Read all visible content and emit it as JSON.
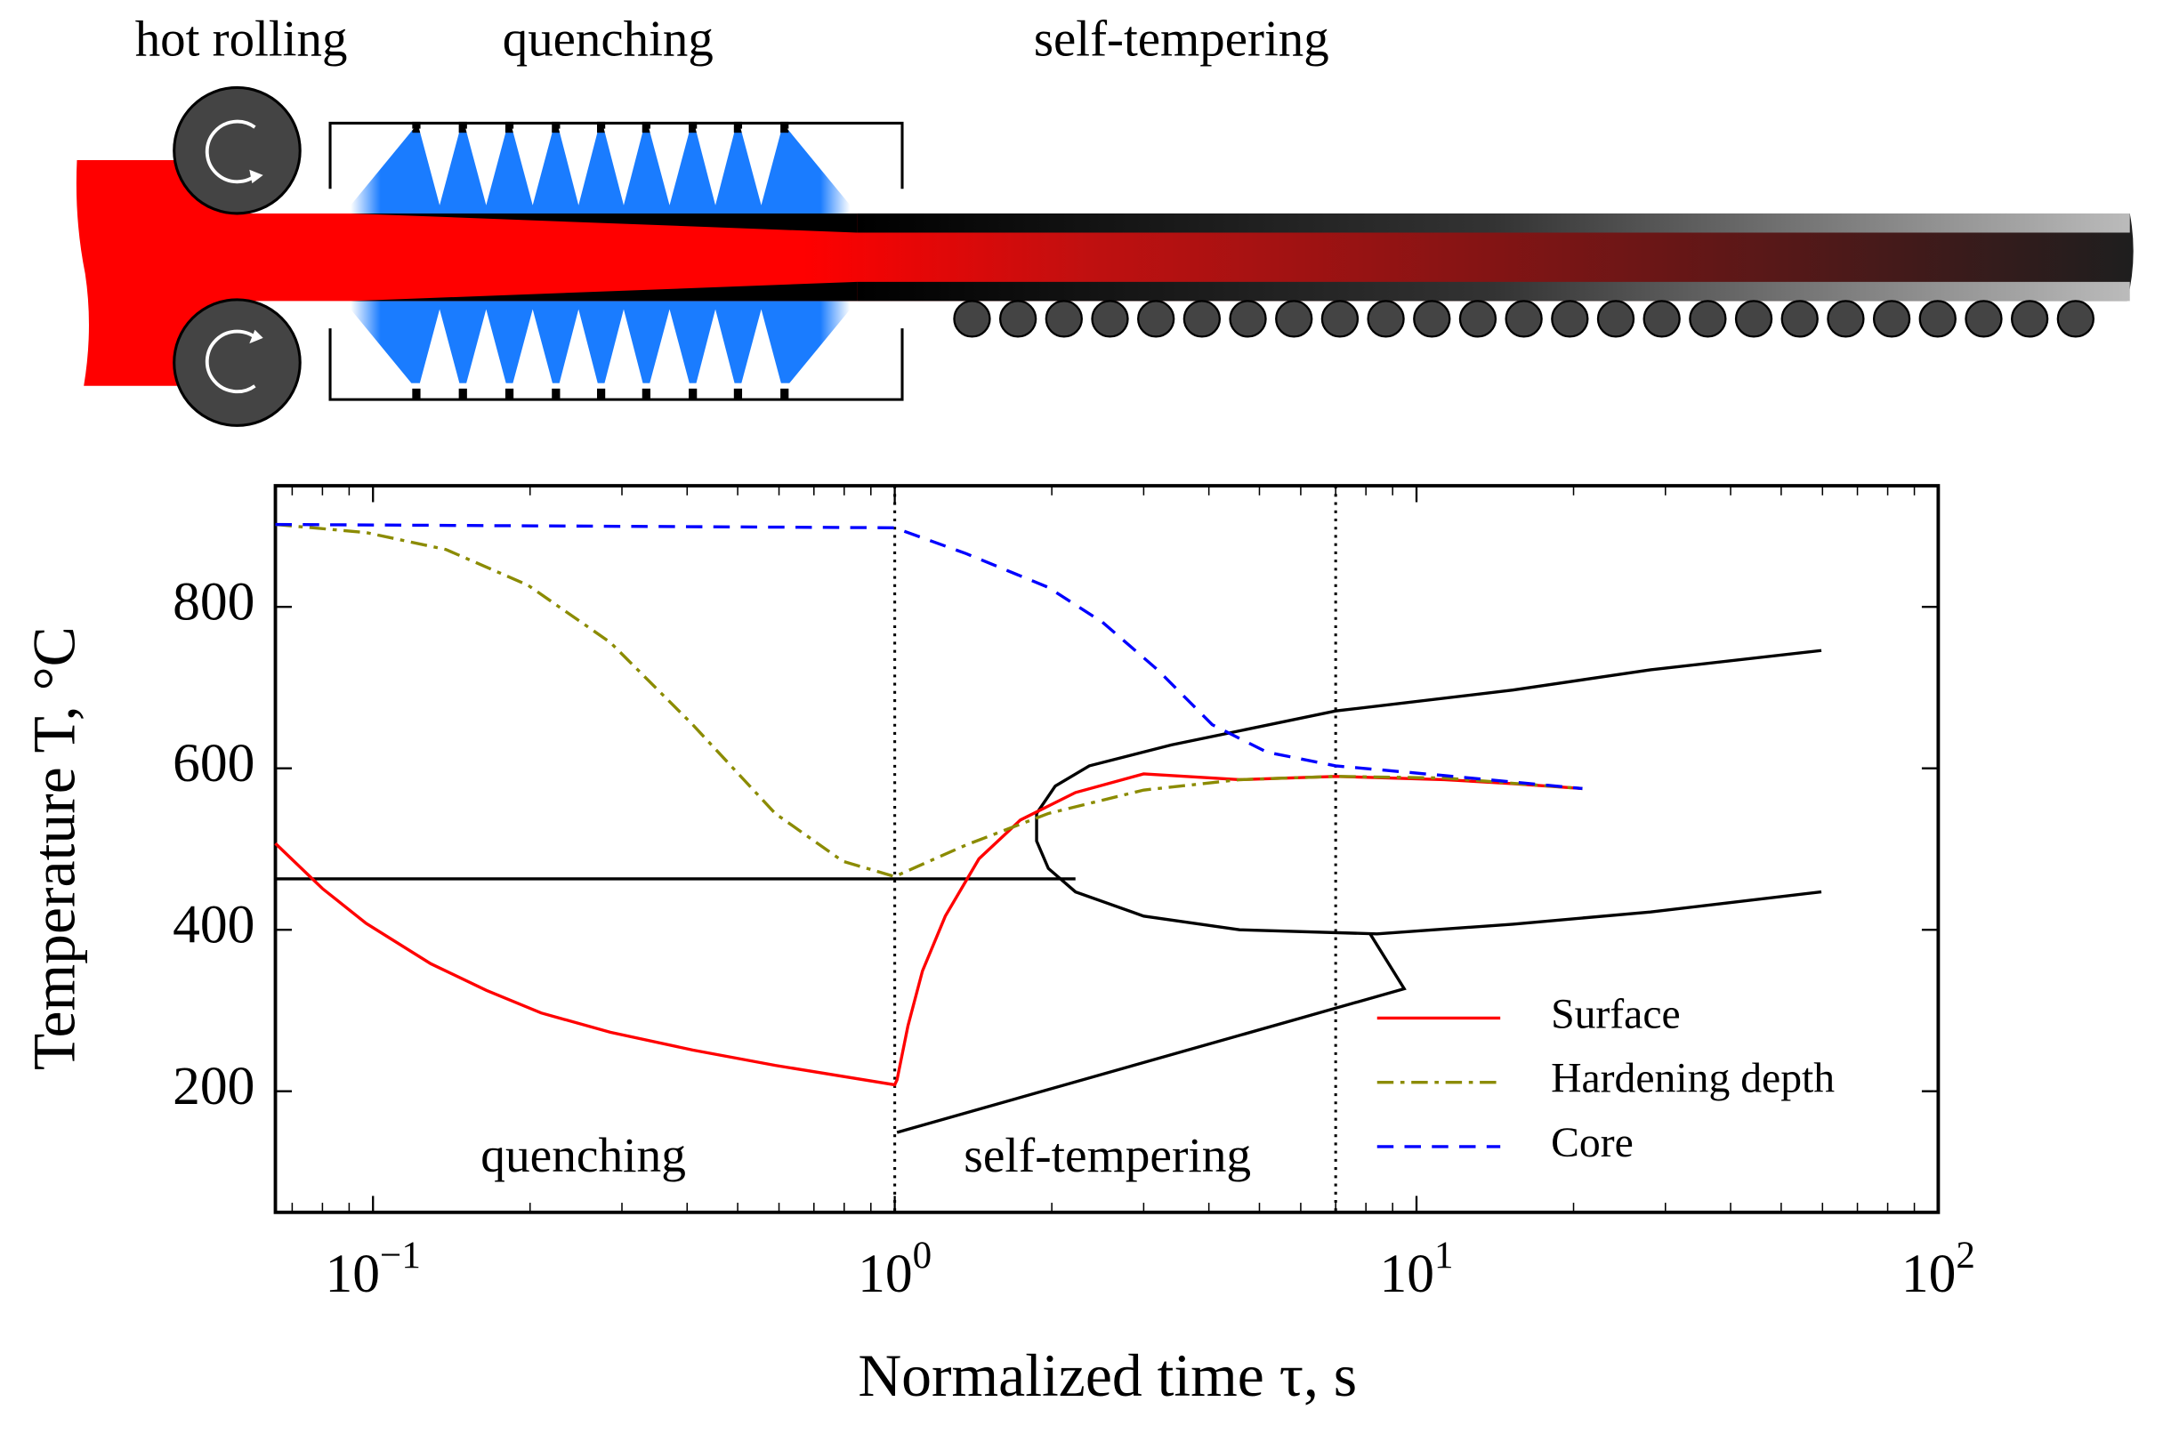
{
  "diagram": {
    "labels": [
      "hot rolling",
      "quenching",
      "self-tempering"
    ]
  },
  "chart_data": {
    "type": "line",
    "xlabel": "Normalized time τ, s",
    "ylabel": "Temperature T, °C",
    "xscale": "log",
    "xlim": [
      0.065,
      100
    ],
    "ylim": [
      50,
      950
    ],
    "xticks": [
      {
        "value": 0.1,
        "label": "10",
        "exponent": "−1"
      },
      {
        "value": 1,
        "label": "10",
        "exponent": "0"
      },
      {
        "value": 10,
        "label": "10",
        "exponent": "1"
      },
      {
        "value": 100,
        "label": "10",
        "exponent": "2"
      }
    ],
    "xminorticks": [
      0.07,
      0.08,
      0.09,
      0.2,
      0.3,
      0.4,
      0.5,
      0.6,
      0.7,
      0.8,
      0.9,
      2,
      3,
      4,
      5,
      6,
      7,
      8,
      9,
      20,
      30,
      40,
      50,
      60,
      70,
      80,
      90
    ],
    "yticks": [
      200,
      400,
      600,
      800
    ],
    "vlines": [
      1,
      7
    ],
    "legend": "lower right",
    "annotations": [
      "quenching",
      "self-tempering"
    ],
    "series": [
      {
        "name": "Surface",
        "color": "#ff0000",
        "style": "solid",
        "x": [
          0.065,
          0.08,
          0.097,
          0.129,
          0.165,
          0.21,
          0.285,
          0.41,
          0.59,
          1.0,
          1.01,
          1.06,
          1.13,
          1.25,
          1.45,
          1.74,
          2.22,
          3.0,
          4.58,
          7.0,
          11.3,
          15.3,
          20.8
        ],
        "values": [
          507,
          451,
          408,
          358,
          325,
          297,
          273,
          251,
          232,
          208,
          214,
          281,
          349,
          417,
          488,
          536,
          570,
          593,
          586,
          590,
          586,
          581,
          575
        ]
      },
      {
        "name": "Hardening depth",
        "color": "#8b8b00",
        "style": "dashdot",
        "x": [
          0.065,
          0.097,
          0.138,
          0.198,
          0.285,
          0.41,
          0.59,
          0.795,
          1.0,
          1.37,
          1.97,
          3.0,
          4.58,
          7.0,
          11.3,
          20.8
        ],
        "values": [
          902,
          892,
          871,
          827,
          756,
          654,
          544,
          485,
          466,
          505,
          544,
          573,
          586,
          590,
          588,
          575
        ]
      },
      {
        "name": "Core",
        "color": "#0000ff",
        "style": "dashed",
        "x": [
          0.065,
          1.0,
          1.37,
          1.97,
          2.5,
          3.19,
          4.06,
          5.17,
          7.0,
          11.3,
          20.8
        ],
        "values": [
          902,
          898,
          866,
          824,
          781,
          722,
          654,
          620,
          603,
          591,
          575
        ]
      }
    ],
    "curves": [
      {
        "color": "#000000",
        "x": [
          0.065,
          2.22
        ],
        "values": [
          463,
          463
        ]
      },
      {
        "color": "#000000",
        "x": [
          59.7,
          28.1,
          15.3,
          7.0,
          3.39,
          2.36,
          2.03,
          1.87,
          1.87,
          1.97,
          2.22,
          3.0,
          4.58,
          8.4,
          15.3,
          28.1,
          59.7
        ],
        "values": [
          746,
          722,
          697,
          671,
          629,
          603,
          578,
          544,
          510,
          476,
          447,
          417,
          400,
          395,
          407,
          422,
          447
        ]
      },
      {
        "color": "#000000",
        "x": [
          8.15,
          9.47,
          1.01
        ],
        "values": [
          395,
          327,
          149
        ]
      }
    ]
  }
}
